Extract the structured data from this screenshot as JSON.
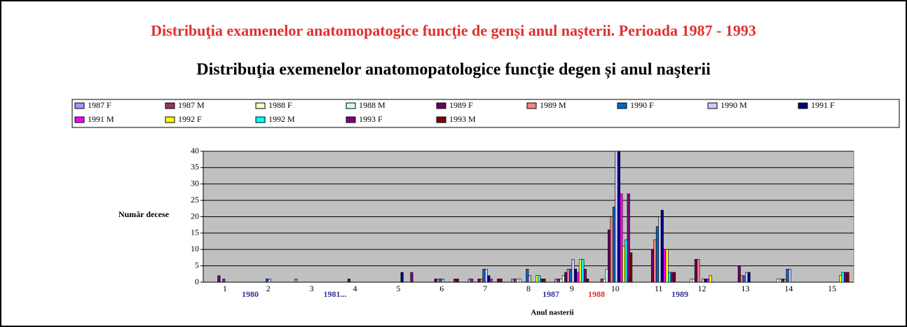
{
  "header": {
    "title": "Distribuţia examenelor anatomopatogice funcţie de genși anul naşterii. Perioada 1987 - 1993"
  },
  "chart_data": {
    "type": "bar",
    "title": "Distribuţia exemenelor anatomopatologice funcţie degen și anul naşterii",
    "x_label": "Anul nasterii",
    "y_label": "Număr decese",
    "categories": [
      "1",
      "2",
      "3",
      "4",
      "5",
      "6",
      "7",
      "8",
      "9",
      "10",
      "11",
      "12",
      "13",
      "14",
      "15"
    ],
    "ylim": [
      0,
      40
    ],
    "yticks": [
      0,
      5,
      10,
      15,
      20,
      25,
      30,
      35,
      40
    ],
    "grid": true,
    "annotations": [
      {
        "text": "1980",
        "color": "#333399"
      },
      {
        "text": "1981...",
        "color": "#333399"
      },
      {
        "text": "1987",
        "color": "#333399"
      },
      {
        "text": "1988",
        "color": "#e03030"
      },
      {
        "text": "1989",
        "color": "#333399"
      }
    ],
    "series": [
      {
        "name": "1987 F",
        "color": "#9999ff",
        "values": [
          0,
          0,
          1,
          0,
          0,
          0,
          1,
          1,
          1,
          0,
          0,
          0,
          0,
          0,
          0
        ]
      },
      {
        "name": "1987 M",
        "color": "#993366",
        "values": [
          0,
          0,
          0,
          0,
          0,
          0,
          1,
          1,
          1,
          1,
          0,
          0,
          0,
          0,
          0
        ]
      },
      {
        "name": "1988 F",
        "color": "#ffffcc",
        "values": [
          0,
          0,
          0,
          0,
          0,
          0,
          0,
          1,
          1,
          1,
          0,
          1,
          0,
          1,
          0
        ]
      },
      {
        "name": "1988 M",
        "color": "#ccffff",
        "values": [
          0,
          0,
          0,
          0,
          0,
          0,
          0,
          1,
          2,
          4,
          0,
          1,
          0,
          1,
          0
        ]
      },
      {
        "name": "1989 F",
        "color": "#660066",
        "values": [
          2,
          0,
          0,
          1,
          0,
          1,
          1,
          0,
          3,
          16,
          10,
          7,
          5,
          1,
          0
        ]
      },
      {
        "name": "1989 M",
        "color": "#ff8080",
        "values": [
          0,
          0,
          0,
          0,
          0,
          1,
          1,
          0,
          4,
          20,
          13,
          7,
          2,
          1,
          0
        ]
      },
      {
        "name": "1990 F",
        "color": "#0066cc",
        "values": [
          1,
          1,
          0,
          0,
          0,
          1,
          4,
          4,
          4,
          23,
          17,
          0,
          2,
          4,
          0
        ]
      },
      {
        "name": "1990 M",
        "color": "#ccccff",
        "values": [
          0,
          1,
          0,
          0,
          0,
          1,
          4,
          2,
          7,
          40,
          20,
          1,
          3,
          4,
          0
        ]
      },
      {
        "name": "1991 F",
        "color": "#000080",
        "values": [
          0,
          0,
          0,
          0,
          3,
          0,
          2,
          0,
          4,
          40,
          22,
          1,
          3,
          0,
          0
        ]
      },
      {
        "name": "1991 M",
        "color": "#ff00ff",
        "values": [
          0,
          0,
          0,
          0,
          0,
          0,
          1,
          0,
          3,
          27,
          10,
          1,
          0,
          0,
          0
        ]
      },
      {
        "name": "1992 F",
        "color": "#ffff00",
        "values": [
          0,
          0,
          0,
          0,
          0,
          0,
          0,
          2,
          7,
          11,
          10,
          2,
          0,
          0,
          2
        ]
      },
      {
        "name": "1992 M",
        "color": "#00ffff",
        "values": [
          0,
          0,
          0,
          0,
          0,
          0,
          0,
          2,
          7,
          13,
          3,
          0,
          0,
          0,
          3
        ]
      },
      {
        "name": "1993 F",
        "color": "#800080",
        "values": [
          0,
          0,
          0,
          0,
          3,
          1,
          1,
          1,
          4,
          27,
          3,
          0,
          0,
          0,
          3
        ]
      },
      {
        "name": "1993 M",
        "color": "#800000",
        "values": [
          0,
          0,
          0,
          0,
          0,
          1,
          1,
          1,
          1,
          9,
          3,
          0,
          0,
          0,
          3
        ]
      }
    ]
  }
}
